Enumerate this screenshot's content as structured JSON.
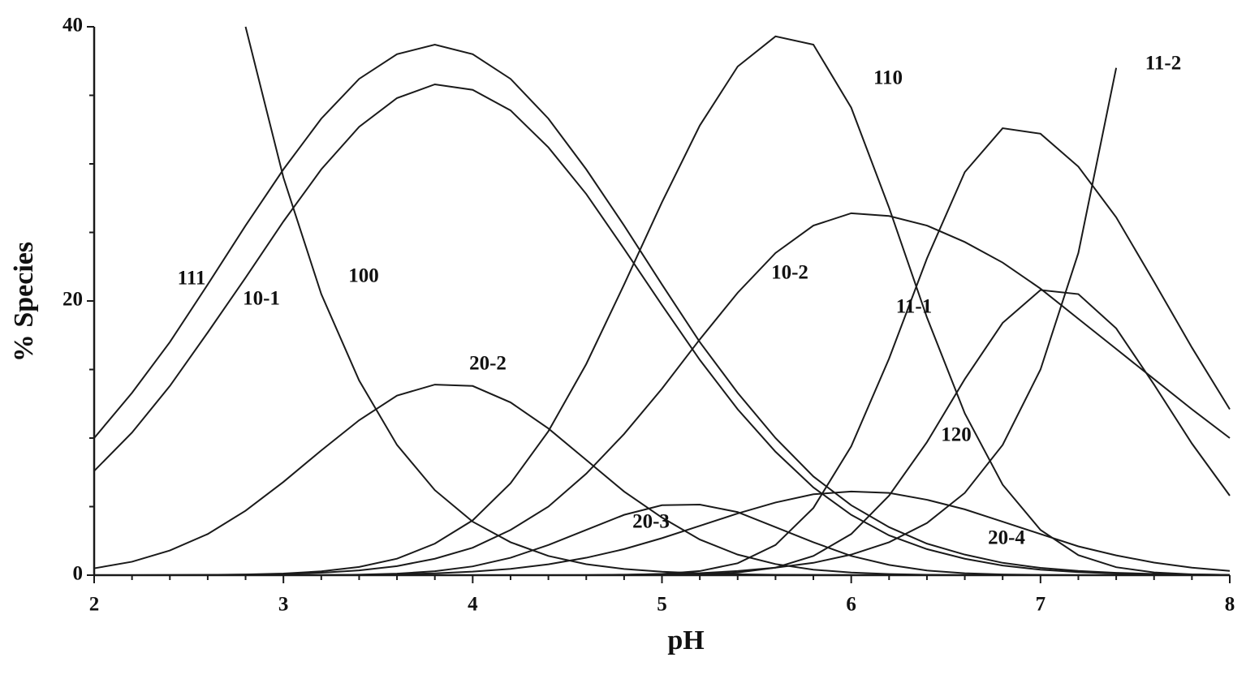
{
  "chart_data": {
    "type": "line",
    "xlabel": "pH",
    "ylabel": "% Species",
    "color": "#1a1a1a",
    "xlim": [
      2,
      8
    ],
    "ylim": [
      0,
      40
    ],
    "xticks": [
      2,
      3,
      4,
      5,
      6,
      7,
      8
    ],
    "yticks": [
      0,
      20,
      40
    ],
    "xminor_ticks": [
      2.2,
      2.4,
      2.6,
      2.8,
      3.2,
      3.4,
      3.6,
      3.8,
      4.2,
      4.4,
      4.6,
      4.8,
      5.2,
      5.4,
      5.6,
      5.8,
      6.2,
      6.4,
      6.6,
      6.8,
      7.2,
      7.4,
      7.6,
      7.8
    ],
    "yminor_ticks": [
      5,
      10,
      15,
      25,
      30,
      35
    ],
    "x": [
      2.0,
      2.2,
      2.4,
      2.6,
      2.8,
      3.0,
      3.2,
      3.4,
      3.6,
      3.8,
      4.0,
      4.2,
      4.4,
      4.6,
      4.8,
      5.0,
      5.2,
      5.4,
      5.6,
      5.8,
      6.0,
      6.2,
      6.4,
      6.6,
      6.8,
      7.0,
      7.2,
      7.4,
      7.6,
      7.8,
      8.0
    ],
    "series": [
      {
        "name": "111",
        "values": [
          10.0,
          13.3,
          17.0,
          21.2,
          25.5,
          29.6,
          33.3,
          36.2,
          38.0,
          38.7,
          38.0,
          36.2,
          33.3,
          29.6,
          25.5,
          21.2,
          17.0,
          13.3,
          10.0,
          7.2,
          5.1,
          3.5,
          2.3,
          1.5,
          0.9,
          0.53,
          0.31,
          0.17,
          0.09,
          0.05,
          0.02
        ]
      },
      {
        "name": "10-1",
        "values": [
          7.6,
          10.4,
          13.8,
          17.7,
          21.7,
          25.8,
          29.6,
          32.7,
          34.8,
          35.8,
          35.4,
          33.9,
          31.2,
          27.8,
          23.8,
          19.7,
          15.7,
          12.1,
          9.0,
          6.4,
          4.4,
          2.9,
          1.9,
          1.2,
          0.7,
          0.4,
          0.22,
          0.12,
          0.06,
          0.03,
          0.01
        ]
      },
      {
        "name": "100",
        "values": [
          null,
          null,
          null,
          null,
          40,
          29,
          20.5,
          14.2,
          9.5,
          6.2,
          3.9,
          2.4,
          1.4,
          0.8,
          0.45,
          0.25,
          0.13,
          0.07,
          0.03,
          0.02,
          0.01,
          0,
          0,
          0,
          0,
          0,
          0,
          0,
          0,
          0,
          0
        ]
      },
      {
        "name": "20-2",
        "values": [
          0.5,
          0.98,
          1.8,
          3.0,
          4.7,
          6.8,
          9.1,
          11.3,
          13.1,
          13.9,
          13.8,
          12.6,
          10.7,
          8.4,
          6.1,
          4.2,
          2.6,
          1.5,
          0.81,
          0.4,
          0.19,
          0.08,
          0.03,
          0.01,
          0,
          0,
          0,
          0,
          0,
          0,
          0
        ]
      },
      {
        "name": "110",
        "values": [
          0,
          0,
          0.01,
          0.02,
          0.05,
          0.12,
          0.28,
          0.6,
          1.2,
          2.3,
          4.0,
          6.7,
          10.5,
          15.4,
          21.2,
          27.2,
          32.8,
          37.1,
          39.3,
          38.7,
          34.1,
          26.8,
          18.8,
          11.8,
          6.6,
          3.3,
          1.46,
          0.58,
          0.2,
          0.06,
          0.02
        ]
      },
      {
        "name": "10-2",
        "values": [
          0,
          0,
          0.01,
          0.02,
          0.04,
          0.08,
          0.18,
          0.35,
          0.66,
          1.2,
          2.0,
          3.3,
          5.0,
          7.4,
          10.3,
          13.6,
          17.2,
          20.6,
          23.5,
          25.5,
          26.4,
          26.2,
          25.5,
          24.3,
          22.8,
          20.9,
          18.7,
          16.5,
          14.3,
          12.1,
          10.0
        ]
      },
      {
        "name": "11-1",
        "values": [
          0,
          0,
          0,
          0,
          0,
          0,
          0,
          0,
          0,
          0,
          0,
          0,
          0,
          0.01,
          0.02,
          0.09,
          0.3,
          0.87,
          2.2,
          4.9,
          9.4,
          15.8,
          23.1,
          29.4,
          32.6,
          32.2,
          29.8,
          26.1,
          21.4,
          16.6,
          12.1
        ]
      },
      {
        "name": "20-3",
        "values": [
          0,
          0,
          0,
          0,
          0,
          0,
          0,
          0.04,
          0.11,
          0.29,
          0.64,
          1.27,
          2.2,
          3.3,
          4.4,
          5.1,
          5.15,
          4.6,
          3.5,
          2.4,
          1.4,
          0.75,
          0.34,
          0.14,
          0.05,
          0.02,
          0,
          0,
          0,
          0,
          0
        ]
      },
      {
        "name": "120",
        "values": [
          0,
          0,
          0,
          0,
          0,
          0,
          0,
          0,
          0,
          0,
          0,
          0,
          0,
          0,
          0,
          0.02,
          0.06,
          0.19,
          0.55,
          1.4,
          3.0,
          5.8,
          9.7,
          14.3,
          18.4,
          20.8,
          20.5,
          18.0,
          13.9,
          9.6,
          5.8
        ]
      },
      {
        "name": "20-4",
        "values": [
          0,
          0,
          0,
          0,
          0,
          0,
          0.01,
          0.03,
          0.07,
          0.13,
          0.26,
          0.46,
          0.79,
          1.27,
          1.9,
          2.7,
          3.6,
          4.5,
          5.3,
          5.9,
          6.1,
          6.0,
          5.5,
          4.8,
          3.9,
          3.0,
          2.1,
          1.44,
          0.92,
          0.55,
          0.31
        ]
      },
      {
        "name": "11-2",
        "values": [
          0,
          0,
          0,
          0,
          0,
          0,
          0,
          0,
          0,
          0,
          0,
          0,
          0,
          0,
          0.04,
          0.08,
          0.15,
          0.3,
          0.55,
          0.9,
          1.5,
          2.4,
          3.8,
          6.0,
          9.5,
          15,
          23.5,
          37,
          null,
          null,
          null
        ]
      }
    ]
  }
}
